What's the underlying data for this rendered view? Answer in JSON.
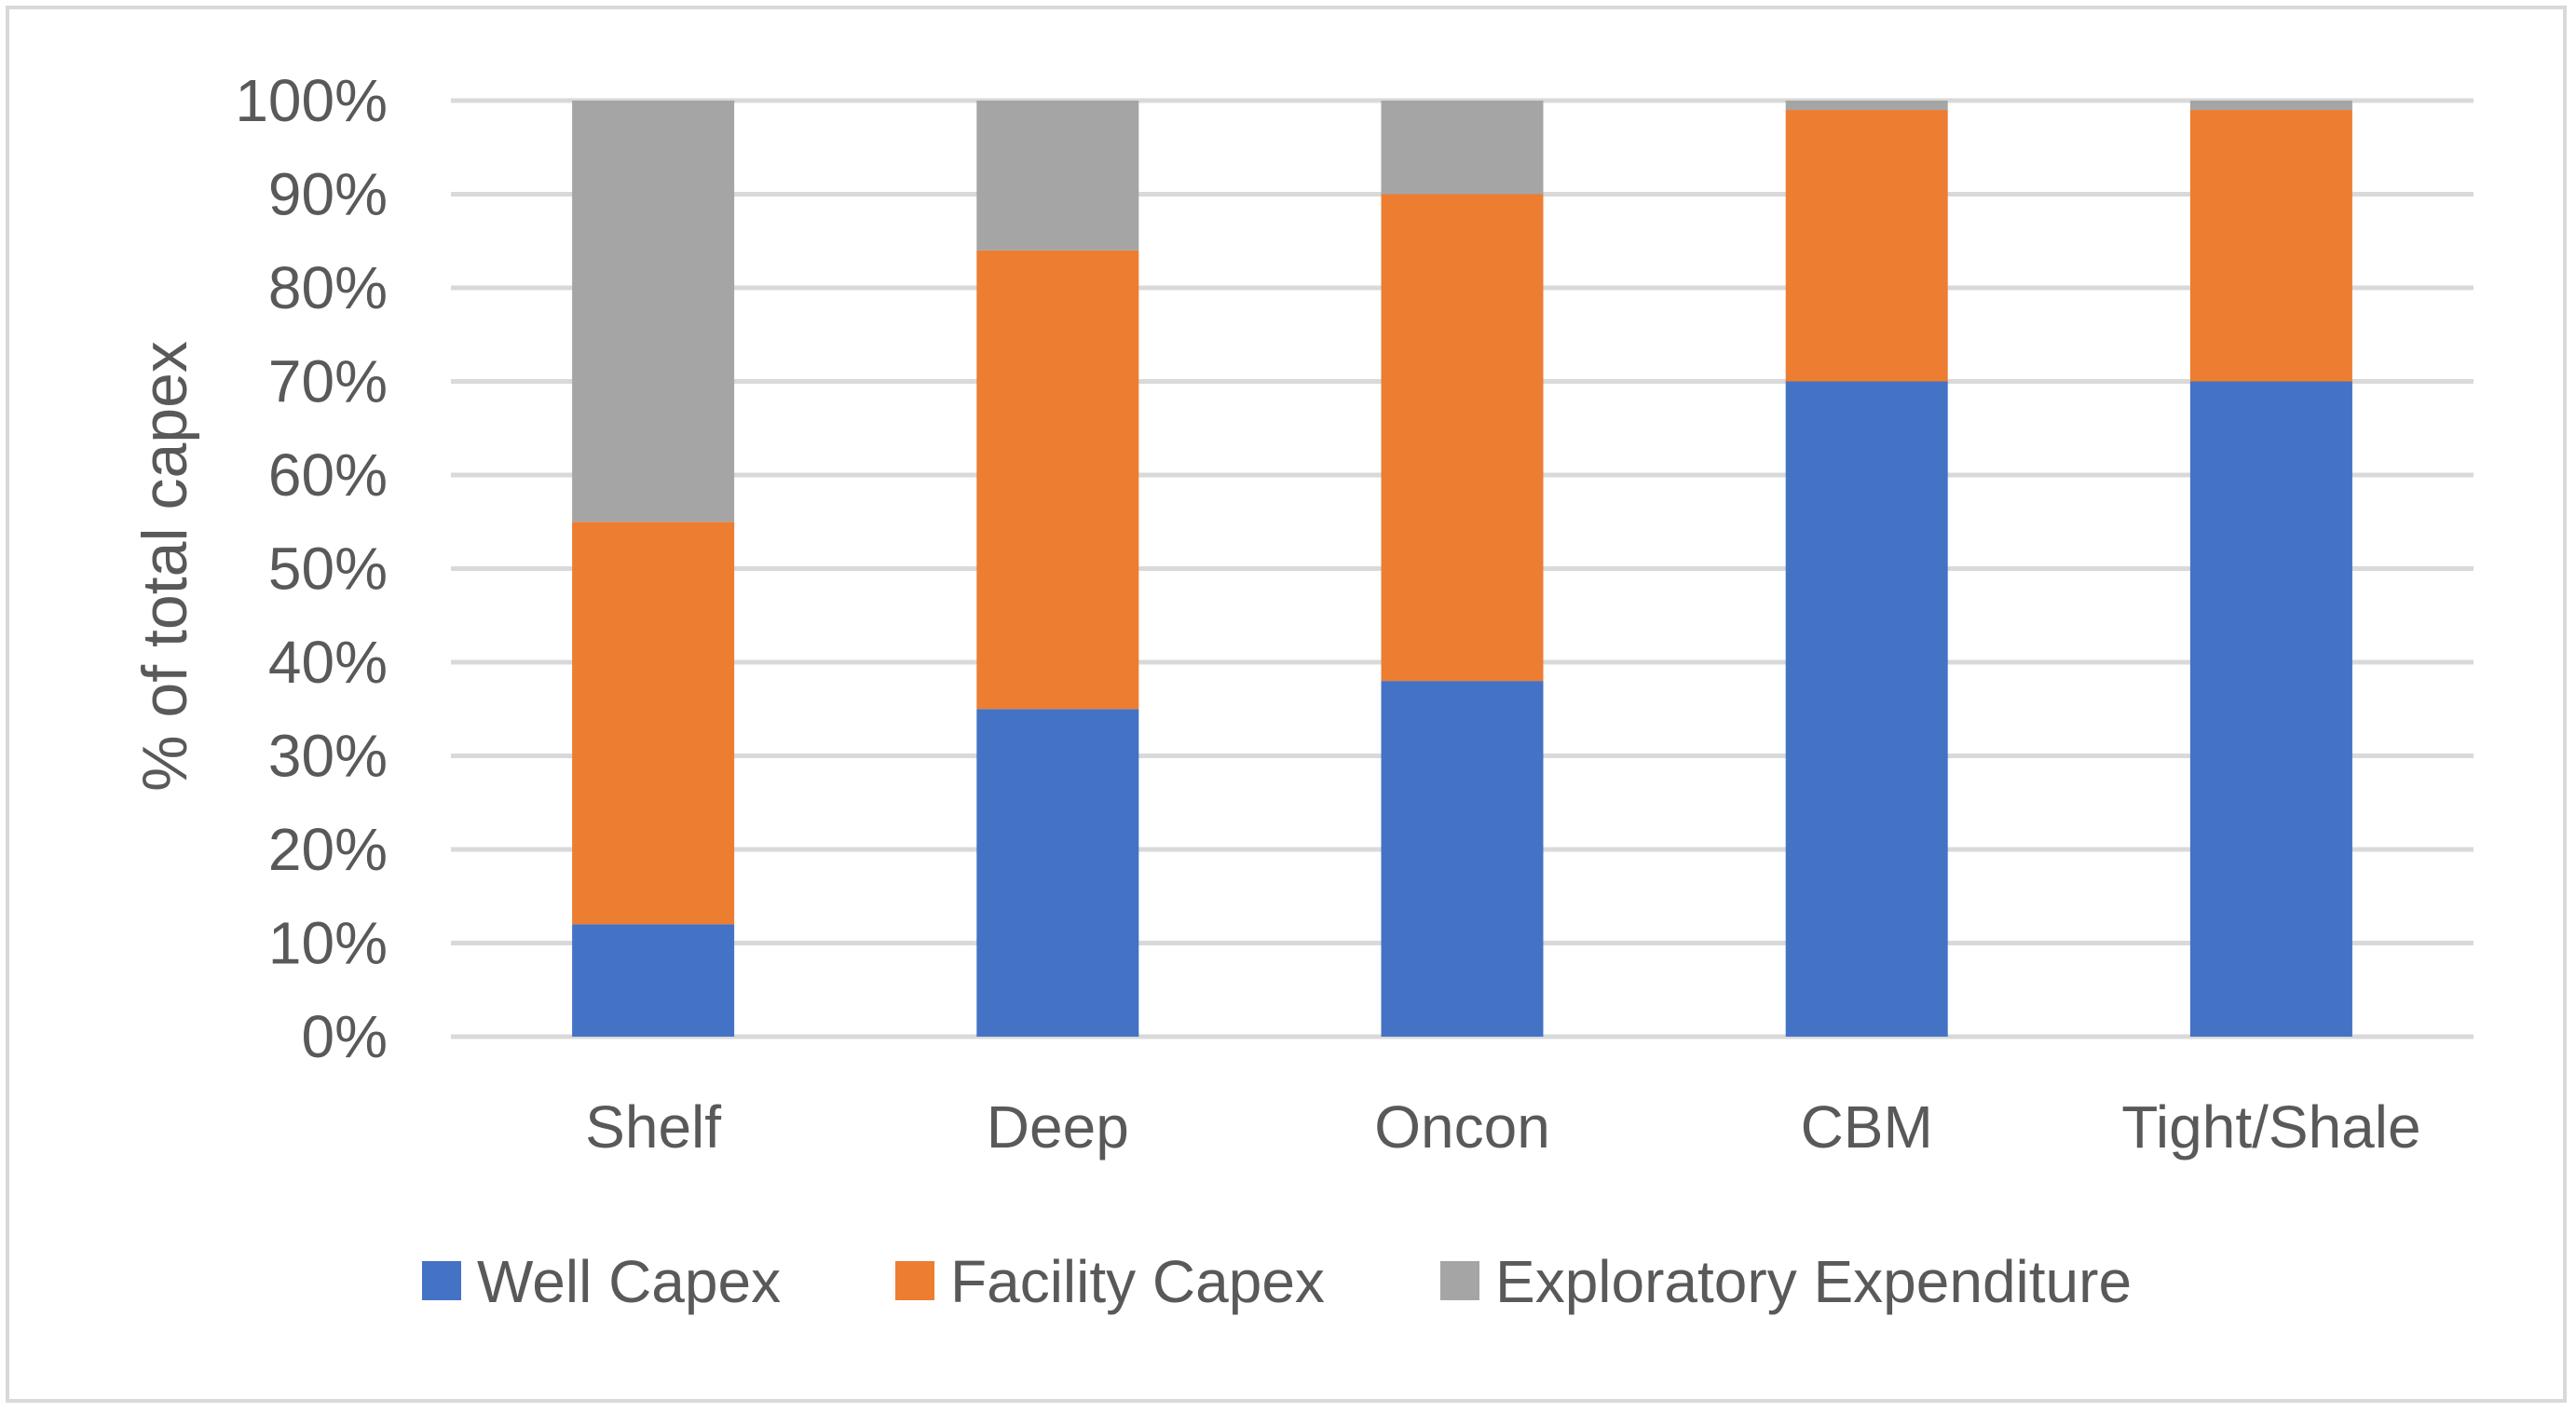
{
  "chart_data": {
    "type": "bar",
    "stacked": true,
    "categories": [
      "Shelf",
      "Deep",
      "Oncon",
      "CBM",
      "Tight/Shale"
    ],
    "series": [
      {
        "name": "Well Capex",
        "color": "#4472c4",
        "values": [
          12,
          35,
          38,
          70,
          70
        ]
      },
      {
        "name": "Facility Capex",
        "color": "#ed7d31",
        "values": [
          43,
          49,
          52,
          29,
          29
        ]
      },
      {
        "name": "Exploratory Expenditure",
        "color": "#a5a5a5",
        "values": [
          45,
          16,
          10,
          1,
          1
        ]
      }
    ],
    "title": "",
    "xlabel": "",
    "ylabel": "% of total capex",
    "ylim": [
      0,
      100
    ],
    "yticks": [
      "0%",
      "10%",
      "20%",
      "30%",
      "40%",
      "50%",
      "60%",
      "70%",
      "80%",
      "90%",
      "100%"
    ],
    "grid": true,
    "gridline_color": "#d9d9d9",
    "legend_position": "bottom"
  }
}
